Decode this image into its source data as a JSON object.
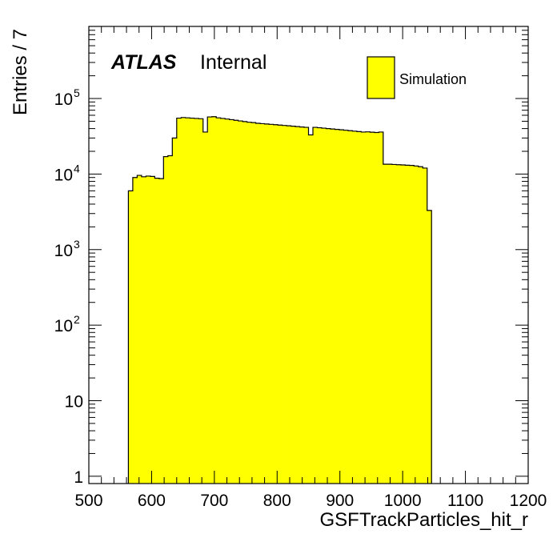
{
  "chart_data": {
    "type": "bar",
    "experiment": "ATLAS",
    "status": "Internal",
    "xlabel": "GSFTrackParticles_hit_r",
    "ylabel": "Entries / 7",
    "xlim": [
      500,
      1200
    ],
    "ylim": [
      0.8,
      900000
    ],
    "yscale": "log",
    "grid": false,
    "legend_position": "top-right",
    "fill_color": "#ffff00",
    "line_color": "#000000",
    "x_tick_labels": [
      "500",
      "600",
      "700",
      "800",
      "900",
      "1000",
      "1100",
      "1200"
    ],
    "y_tick_labels": [
      {
        "base": "1",
        "exp": ""
      },
      {
        "base": "10",
        "exp": ""
      },
      {
        "base": "10",
        "exp": "2"
      },
      {
        "base": "10",
        "exp": "3"
      },
      {
        "base": "10",
        "exp": "4"
      },
      {
        "base": "10",
        "exp": "5"
      }
    ],
    "series": [
      {
        "name": "Simulation",
        "bin_width": 7,
        "x_start": 563,
        "values": [
          6000,
          9000,
          9600,
          9200,
          9400,
          9300,
          8800,
          8700,
          17000,
          17500,
          30000,
          55000,
          56000,
          55500,
          55000,
          54500,
          54000,
          36000,
          57000,
          57500,
          55500,
          54500,
          53500,
          52500,
          51500,
          50500,
          49500,
          48500,
          48000,
          47000,
          46500,
          46000,
          45500,
          45000,
          44500,
          44000,
          43500,
          43000,
          42500,
          42000,
          41500,
          33000,
          41500,
          41000,
          40500,
          40000,
          39500,
          39000,
          38500,
          38000,
          37500,
          37000,
          36500,
          36000,
          36200,
          35800,
          35500,
          36000,
          13500,
          13500,
          13400,
          13300,
          13200,
          13100,
          13000,
          12800,
          12500,
          12000,
          3300
        ]
      }
    ]
  }
}
